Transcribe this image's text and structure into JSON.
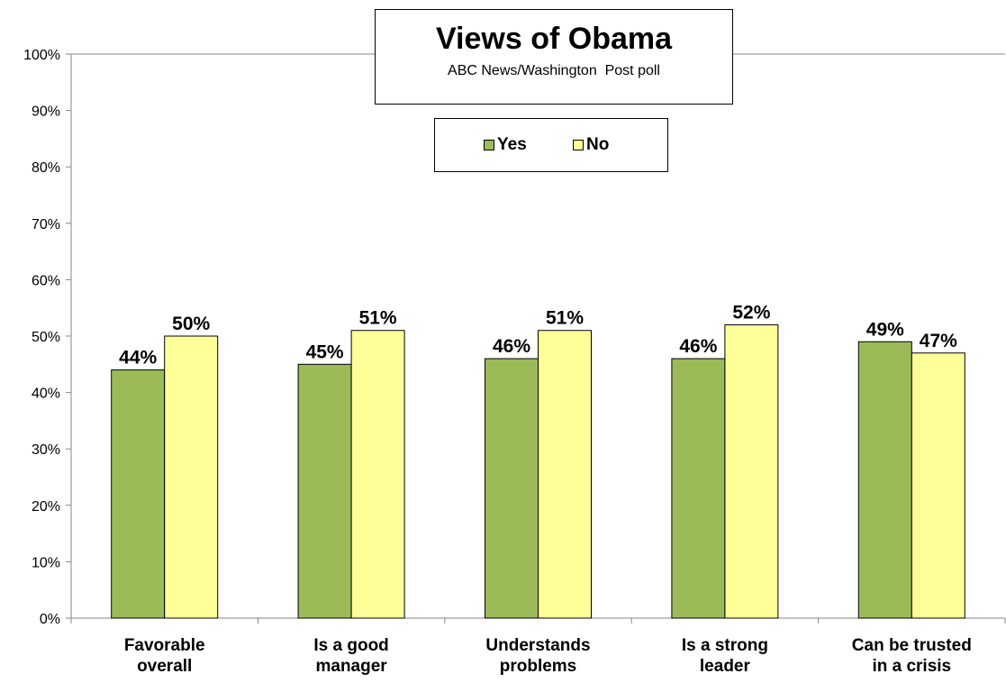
{
  "colors": {
    "yes": "#9bbb59",
    "no": "#ffff99",
    "axis": "#868686",
    "grid": "#868686",
    "border": "#000000"
  },
  "chart_data": {
    "type": "bar",
    "title": "Views of Obama",
    "subtitle": "ABC News/Washington  Post poll",
    "categories": [
      [
        "Favorable",
        "overall"
      ],
      [
        "Is a good",
        "manager"
      ],
      [
        "Understands",
        "problems"
      ],
      [
        "Is a strong",
        "leader"
      ],
      [
        "Can be trusted",
        "in a crisis"
      ]
    ],
    "series": [
      {
        "name": "Yes",
        "values": [
          44,
          45,
          46,
          46,
          49
        ]
      },
      {
        "name": "No",
        "values": [
          50,
          51,
          51,
          52,
          47
        ]
      }
    ],
    "data_labels": [
      [
        "44%",
        "45%",
        "46%",
        "46%",
        "49%"
      ],
      [
        "50%",
        "51%",
        "51%",
        "52%",
        "47%"
      ]
    ],
    "y_ticks": [
      0,
      10,
      20,
      30,
      40,
      50,
      60,
      70,
      80,
      90,
      100
    ],
    "y_tick_labels": [
      "0%",
      "10%",
      "20%",
      "30%",
      "40%",
      "50%",
      "60%",
      "70%",
      "80%",
      "90%",
      "100%"
    ],
    "ylim": [
      0,
      100
    ],
    "grid": "top border only",
    "legend_position": "top-center"
  }
}
